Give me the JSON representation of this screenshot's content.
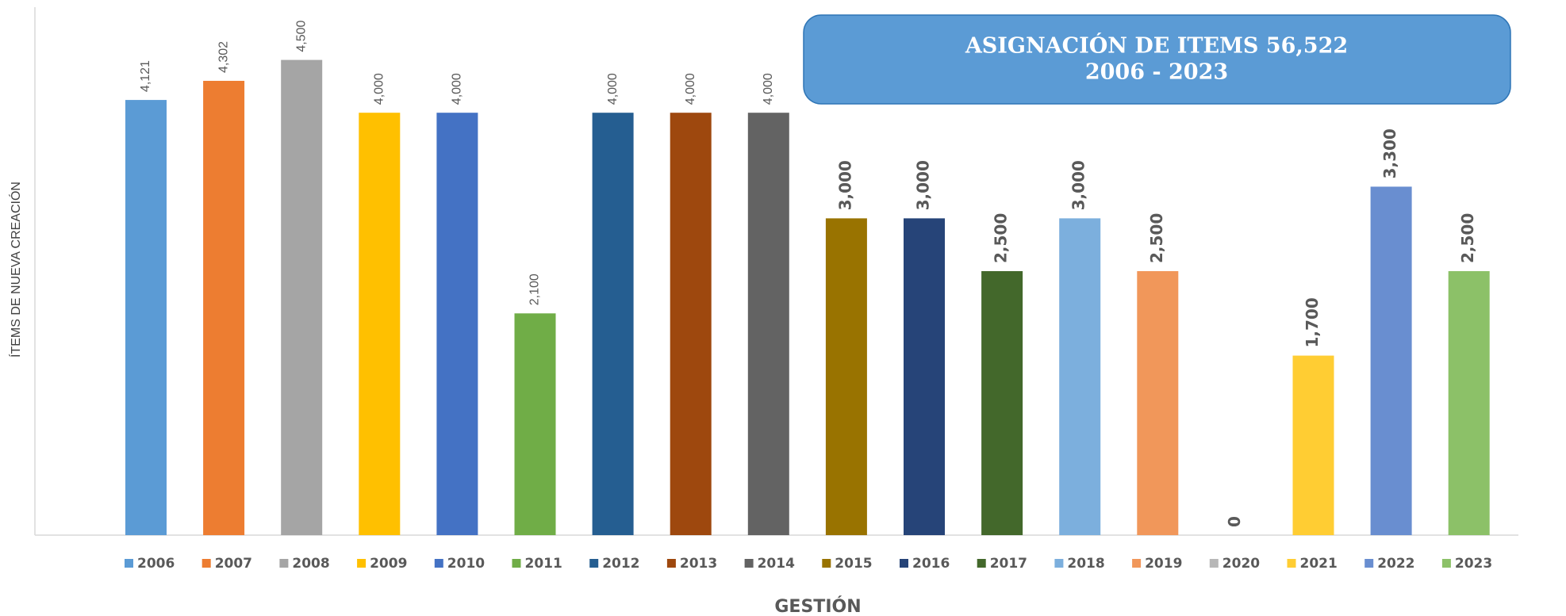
{
  "chart_data": {
    "type": "bar",
    "title": "ASIGNACIÓN DE ITEMS 56,522",
    "subtitle": "2006 - 2023",
    "x_label": "GESTIÓN",
    "y_label": "ÍTEMS DE NUEVA CREACIÓN",
    "categories": [
      "2006",
      "2007",
      "2008",
      "2009",
      "2010",
      "2011",
      "2012",
      "2013",
      "2014",
      "2015",
      "2016",
      "2017",
      "2018",
      "2019",
      "2020",
      "2021",
      "2022",
      "2023"
    ],
    "values": [
      4121,
      4302,
      4500,
      4000,
      4000,
      2100,
      4000,
      4000,
      4000,
      3000,
      3000,
      2500,
      3000,
      2500,
      0,
      1700,
      3300,
      2500
    ],
    "value_labels": [
      "4,121",
      "4,302",
      "4,500",
      "4,000",
      "4,000",
      "2,100",
      "4,000",
      "4,000",
      "4,000",
      "3,000",
      "3,000",
      "2,500",
      "3,000",
      "2,500",
      "0",
      "1,700",
      "3,300",
      "2,500"
    ],
    "colors": [
      "#5b9bd5",
      "#ed7d31",
      "#a5a5a5",
      "#ffc000",
      "#4472c4",
      "#70ad47",
      "#255e91",
      "#9e480e",
      "#636363",
      "#997300",
      "#264478",
      "#43682b",
      "#7cafdd",
      "#f1975a",
      "#b7b7b7",
      "#ffcd33",
      "#698ed0",
      "#8cc168"
    ],
    "ylim": [
      0,
      5000
    ],
    "legend": "bottom"
  }
}
